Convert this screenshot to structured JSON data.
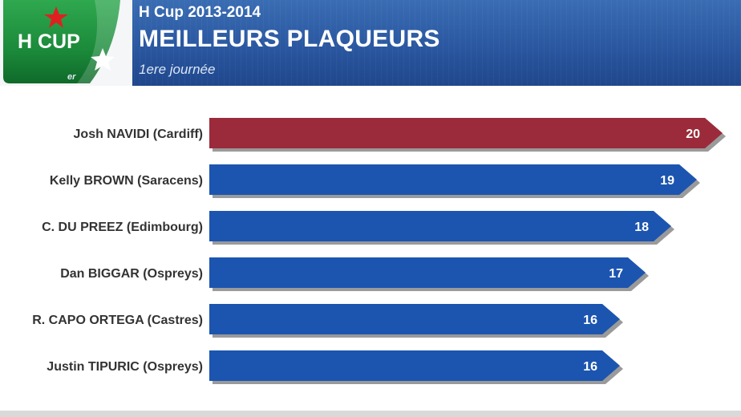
{
  "header": {
    "logo_text": "H CUP",
    "competition": "H Cup 2013-2014",
    "title": "MEILLEURS PLAQUEURS",
    "subtitle": "1ere journée"
  },
  "colors": {
    "header_blue": "#2a57a0",
    "bar_blue": "#1c55b0",
    "bar_highlight": "#9b2b3a",
    "logo_green": "#1b8a3a",
    "star_red": "#e02020"
  },
  "chart_data": {
    "type": "bar",
    "orientation": "horizontal",
    "categories": [
      "Josh NAVIDI (Cardiff)",
      "Kelly BROWN (Saracens)",
      "C. DU PREEZ (Edimbourg)",
      "Dan BIGGAR (Ospreys)",
      "R. CAPO ORTEGA (Castres)",
      "Justin TIPURIC (Ospreys)"
    ],
    "values": [
      20,
      19,
      18,
      17,
      16,
      16
    ],
    "highlight_index": 0,
    "xlim": [
      0,
      20
    ],
    "grid": false,
    "data_labels": true
  }
}
